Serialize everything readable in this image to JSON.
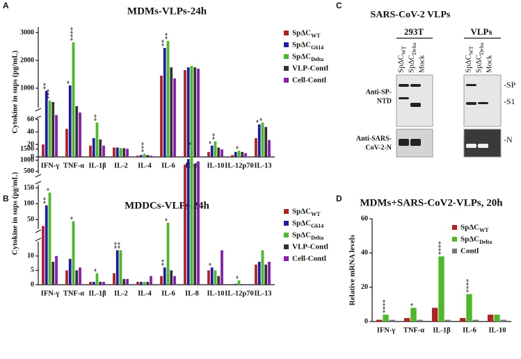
{
  "panel_labels": [
    "A",
    "B",
    "C",
    "D"
  ],
  "chart_data": [
    {
      "type": "bar",
      "title": "MDMs-VLPs-24h",
      "y_label": "Cytokine in sups (pg/mL)",
      "categories": [
        "IFN-γ",
        "TNF-α",
        "IL-1β",
        "IL-2",
        "IL-4",
        "IL-6",
        "IL-8",
        "IL-10",
        "IL-12p70",
        "IL-13"
      ],
      "series": [
        {
          "name": "SpΔC",
          "name_sub": "WT",
          "color": "#b22222",
          "values": [
            20,
            45,
            18,
            15,
            2,
            1450,
            1650,
            8,
            3,
            30
          ]
        },
        {
          "name": "SpΔC",
          "name_sub": "G614",
          "color": "#1c1ca8",
          "values": [
            900,
            1100,
            30,
            15,
            3,
            2450,
            1750,
            18,
            8,
            52
          ]
        },
        {
          "name": "SpΔC",
          "name_sub": "Delta",
          "color": "#4cb82a",
          "values": [
            550,
            2650,
            55,
            14,
            5,
            2700,
            1800,
            25,
            10,
            55
          ]
        },
        {
          "name": "VLP-Contl",
          "color": "#333333",
          "values": [
            500,
            350,
            28,
            14,
            3,
            1750,
            1750,
            15,
            8,
            48
          ]
        },
        {
          "name": "Cell-Contl",
          "color": "#8a1ab8",
          "values": [
            150,
            200,
            18,
            13,
            2,
            1350,
            1700,
            12,
            6,
            27
          ]
        }
      ],
      "segments": [
        [
          0,
          60
        ],
        [
          300,
          3200
        ]
      ],
      "yticks": [
        0,
        20,
        40,
        60,
        1000,
        2000,
        3000
      ],
      "stars": [
        {
          "category": 0,
          "series": 1,
          "label": "**"
        },
        {
          "category": 0,
          "series": 2,
          "label": "***"
        },
        {
          "category": 1,
          "series": 1,
          "label": "*"
        },
        {
          "category": 1,
          "series": 2,
          "label": "****"
        },
        {
          "category": 2,
          "series": 2,
          "label": "**"
        },
        {
          "category": 4,
          "series": 2,
          "label": "***"
        },
        {
          "category": 5,
          "series": 1,
          "label": "**"
        },
        {
          "category": 5,
          "series": 2,
          "label": "**"
        },
        {
          "category": 7,
          "series": 1,
          "label": "*"
        },
        {
          "category": 7,
          "series": 2,
          "label": "**"
        },
        {
          "category": 8,
          "series": 2,
          "label": "*"
        },
        {
          "category": 9,
          "series": 1,
          "label": "*"
        },
        {
          "category": 9,
          "series": 2,
          "label": "*"
        }
      ]
    },
    {
      "type": "bar",
      "title": "MDDCs-VLPs-24h",
      "y_label": "Cytokine in sups (pg/mL)",
      "categories": [
        "IFN-γ",
        "TNF-α",
        "IL-1β",
        "IL-2",
        "IL-4",
        "IL-6",
        "IL-8",
        "IL-10",
        "IL-12p70",
        "IL-13"
      ],
      "series": [
        {
          "name": "SpΔC",
          "name_sub": "WT",
          "color": "#b22222",
          "values": [
            30,
            5,
            1,
            4,
            1,
            3,
            800,
            5,
            0.2,
            7
          ]
        },
        {
          "name": "SpΔC",
          "name_sub": "G614",
          "color": "#1c1ca8",
          "values": [
            95,
            9,
            1,
            12,
            1,
            6,
            1050,
            6,
            0.3,
            8
          ]
        },
        {
          "name": "SpΔC",
          "name_sub": "Delta",
          "color": "#4cb82a",
          "values": [
            135,
            45,
            4,
            12,
            1,
            40,
            1600,
            5,
            1.5,
            12
          ]
        },
        {
          "name": "VLP-Contl",
          "color": "#333333",
          "values": [
            8,
            5,
            1,
            2,
            1,
            5,
            850,
            3,
            0.2,
            7
          ]
        },
        {
          "name": "Cell-Contl",
          "color": "#8a1ab8",
          "values": [
            10,
            6,
            1,
            2,
            3,
            3,
            950,
            12,
            0.2,
            8
          ]
        }
      ],
      "segments": [
        [
          0,
          15
        ],
        [
          20,
          160
        ],
        [
          400,
          1800
        ]
      ],
      "yticks": [
        0,
        5,
        10,
        50,
        100,
        150,
        500,
        1000,
        1500
      ],
      "stars": [
        {
          "category": 0,
          "series": 1,
          "label": "**"
        },
        {
          "category": 0,
          "series": 2,
          "label": "*"
        },
        {
          "category": 1,
          "series": 2,
          "label": "*"
        },
        {
          "category": 2,
          "series": 2,
          "label": "*"
        },
        {
          "category": 3,
          "series": 1,
          "label": "**"
        },
        {
          "category": 3,
          "series": 2,
          "label": "**"
        },
        {
          "category": 5,
          "series": 1,
          "label": "**"
        },
        {
          "category": 5,
          "series": 2,
          "label": "*"
        },
        {
          "category": 6,
          "series": 2,
          "label": "*"
        },
        {
          "category": 7,
          "series": 1,
          "label": "*"
        },
        {
          "category": 8,
          "series": 2,
          "label": "*"
        }
      ]
    },
    {
      "type": "bar",
      "title": "MDMs+SARS-CoV2-VLPs, 20h",
      "y_label": "Relative mRNA levels",
      "categories": [
        "IFN-γ",
        "TNF-α",
        "IL-1β",
        "IL-6",
        "IL-10"
      ],
      "series": [
        {
          "name": "SpΔC",
          "name_sub": "WT",
          "color": "#b22222",
          "values": [
            1,
            2,
            8,
            2,
            4
          ]
        },
        {
          "name": "SpΔC",
          "name_sub": "Delta",
          "color": "#4cb82a",
          "values": [
            4,
            8,
            38,
            16,
            4
          ]
        },
        {
          "name": "Contl",
          "color": "#777777",
          "values": [
            1,
            1,
            1,
            1,
            1
          ]
        }
      ],
      "segments": [
        [
          0,
          60
        ]
      ],
      "yticks": [
        0,
        20,
        40,
        60
      ],
      "stars": [
        {
          "category": 0,
          "series": 1,
          "label": "****"
        },
        {
          "category": 1,
          "series": 1,
          "label": "*"
        },
        {
          "category": 2,
          "series": 1,
          "label": "****"
        },
        {
          "category": 3,
          "series": 1,
          "label": "****"
        }
      ]
    }
  ],
  "blot": {
    "title": "SARS-CoV-2 VLPs",
    "groups": [
      "293T",
      "VLPs"
    ],
    "lanes": [
      {
        "name": "SpΔC",
        "name_sub": "WT"
      },
      {
        "name": "SpΔC",
        "name_sub": "Delta"
      },
      {
        "name": "Mock"
      }
    ],
    "rows": [
      [
        "Anti-SP-",
        "NTD"
      ],
      [
        "Anti-SARS-",
        "CoV-2-N"
      ]
    ],
    "bands": [
      "-SP",
      "-S1",
      "-N"
    ]
  }
}
